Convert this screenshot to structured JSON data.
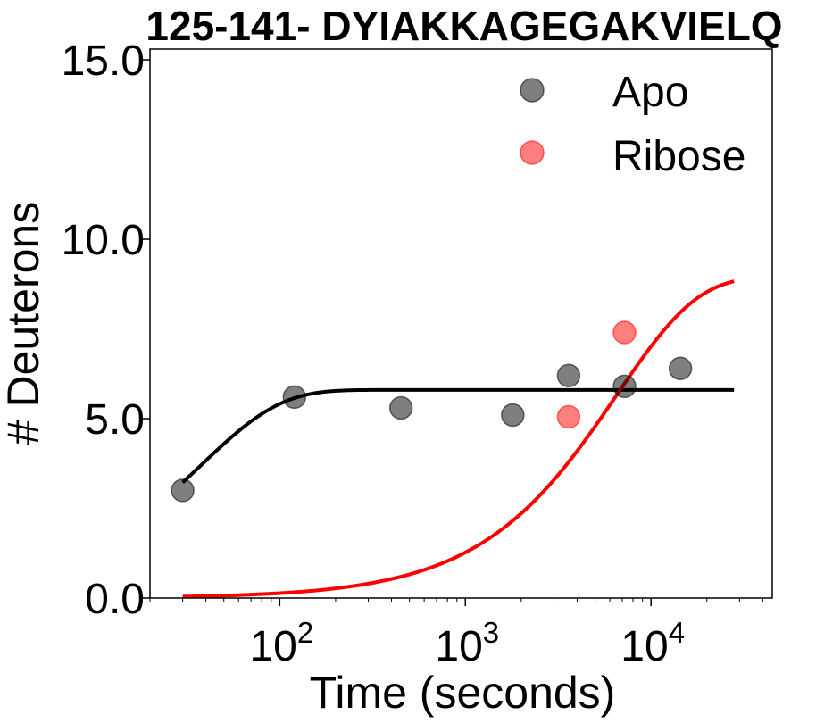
{
  "chart_data": {
    "type": "scatter",
    "title": "125-141- DYIAKKAGEGAKVIELQ",
    "xlabel": "Time (seconds)",
    "ylabel": "# Deuterons",
    "x_scale": "log",
    "xlim": [
      20,
      45000
    ],
    "ylim": [
      0,
      15.3
    ],
    "y_ticks": [
      "0.0",
      "5.0",
      "10.0",
      "15.0"
    ],
    "x_ticks": [
      {
        "base": "10",
        "exp": "2",
        "value": 100
      },
      {
        "base": "10",
        "exp": "3",
        "value": 1000
      },
      {
        "base": "10",
        "exp": "4",
        "value": 10000
      }
    ],
    "legend_position": "top-right",
    "series": [
      {
        "name": "Apo",
        "color": "#000000",
        "points": [
          {
            "x": 30,
            "y": 3.0
          },
          {
            "x": 120,
            "y": 5.6
          },
          {
            "x": 450,
            "y": 5.3
          },
          {
            "x": 1800,
            "y": 5.1
          },
          {
            "x": 3600,
            "y": 6.2
          },
          {
            "x": 7200,
            "y": 5.9
          },
          {
            "x": 14400,
            "y": 6.4
          }
        ],
        "fit": {
          "model": "1-exp",
          "ymax": 5.8,
          "k": 0.027,
          "x_range": [
            30,
            28000
          ]
        }
      },
      {
        "name": "Ribose",
        "color": "#ff0000",
        "points": [
          {
            "x": 3600,
            "y": 5.05
          },
          {
            "x": 7200,
            "y": 7.4
          }
        ],
        "fit": {
          "model": "1-exp",
          "ymax": 8.95,
          "k": 0.000153,
          "x_range": [
            30,
            28000
          ]
        }
      }
    ]
  }
}
